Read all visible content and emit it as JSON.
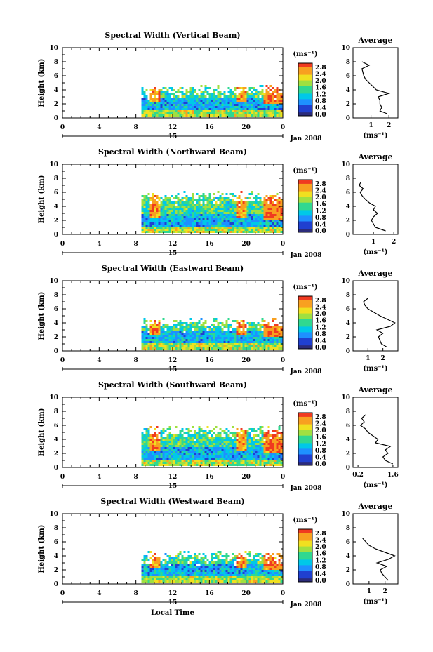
{
  "chart_data": [
    {
      "type": "heatmap",
      "title": "Spectral Width (Vertical Beam)",
      "ylabel": "Height (km)",
      "xticks": [
        "0",
        "4",
        "8",
        "12",
        "16",
        "20",
        "0"
      ],
      "xlim": [
        0,
        24
      ],
      "yticks": [
        "0",
        "2",
        "4",
        "6",
        "8",
        "10"
      ],
      "ylim": [
        0,
        10
      ],
      "date_label": "Jan 2008",
      "day_label": "15",
      "colorbar": {
        "unit": "(ms⁻¹)",
        "ticks": [
          "2.8",
          "2.4",
          "2.0",
          "1.6",
          "1.2",
          "0.8",
          "0.4",
          "0.0"
        ]
      },
      "average": {
        "title": "Average",
        "xlabel": "(ms⁻¹)",
        "xticks": [
          "1",
          "2"
        ],
        "xlim": [
          0,
          2.5
        ],
        "height": [
          0.6,
          1.0,
          1.5,
          2.0,
          2.5,
          3.0,
          3.5,
          4.0,
          4.5,
          5.0,
          5.5,
          6.0,
          6.5,
          7.0,
          7.5,
          8.0
        ],
        "values": [
          1.9,
          1.5,
          1.6,
          1.5,
          1.5,
          1.4,
          2.0,
          1.3,
          1.1,
          0.9,
          0.7,
          0.6,
          0.55,
          0.5,
          0.9,
          0.5
        ]
      }
    },
    {
      "type": "heatmap",
      "title": "Spectral Width (Northward Beam)",
      "ylabel": "Height (km)",
      "xticks": [
        "0",
        "4",
        "8",
        "12",
        "16",
        "20",
        "0"
      ],
      "xlim": [
        0,
        24
      ],
      "yticks": [
        "0",
        "2",
        "4",
        "6",
        "8",
        "10"
      ],
      "ylim": [
        0,
        10
      ],
      "date_label": "Jan 2008",
      "day_label": "15",
      "colorbar": {
        "unit": "(ms⁻¹)",
        "ticks": [
          "2.8",
          "2.4",
          "2.0",
          "1.6",
          "1.2",
          "0.8",
          "0.4",
          "0.0"
        ]
      },
      "average": {
        "title": "Average",
        "xlabel": "(ms⁻¹)",
        "xticks": [
          "1",
          "2"
        ],
        "xlim": [
          0,
          2.2
        ],
        "height": [
          0.5,
          1.0,
          1.5,
          2.0,
          2.5,
          3.0,
          3.5,
          4.0,
          4.5,
          5.0,
          5.5,
          6.0,
          6.5,
          7.0,
          7.5
        ],
        "values": [
          1.6,
          1.1,
          1.0,
          0.9,
          1.0,
          1.2,
          1.0,
          1.1,
          0.8,
          0.6,
          0.45,
          0.35,
          0.5,
          0.3,
          0.4
        ]
      }
    },
    {
      "type": "heatmap",
      "title": "Spectral Width (Eastward Beam)",
      "ylabel": "Height (km)",
      "xticks": [
        "0",
        "4",
        "8",
        "12",
        "16",
        "20",
        "0"
      ],
      "xlim": [
        0,
        24
      ],
      "yticks": [
        "0",
        "2",
        "4",
        "6",
        "8",
        "10"
      ],
      "ylim": [
        0,
        10
      ],
      "date_label": "Jan 2008",
      "day_label": "15",
      "colorbar": {
        "unit": "(ms⁻¹)",
        "ticks": [
          "2.8",
          "2.4",
          "2.0",
          "1.6",
          "1.2",
          "0.8",
          "0.4",
          "0.0"
        ]
      },
      "average": {
        "title": "Average",
        "xlabel": "(ms⁻¹)",
        "xticks": [
          "1",
          "2"
        ],
        "xlim": [
          0,
          3
        ],
        "height": [
          0.5,
          1.0,
          1.5,
          2.0,
          2.5,
          3.0,
          3.5,
          4.0,
          4.5,
          5.0,
          5.5,
          6.0,
          6.5,
          7.0,
          7.5
        ],
        "values": [
          2.3,
          1.9,
          1.8,
          1.7,
          2.0,
          1.6,
          2.5,
          2.8,
          2.3,
          1.8,
          1.4,
          1.0,
          0.8,
          0.7,
          1.0
        ]
      }
    },
    {
      "type": "heatmap",
      "title": "Spectral Width (Southward Beam)",
      "ylabel": "Height (km)",
      "xticks": [
        "0",
        "4",
        "8",
        "12",
        "16",
        "20",
        "0"
      ],
      "xlim": [
        0,
        24
      ],
      "yticks": [
        "0",
        "2",
        "4",
        "6",
        "8",
        "10"
      ],
      "ylim": [
        0,
        10
      ],
      "date_label": "Jan 2008",
      "day_label": "15",
      "colorbar": {
        "unit": "(ms⁻¹)",
        "ticks": [
          "2.8",
          "2.4",
          "2.0",
          "1.6",
          "1.2",
          "0.8",
          "0.4",
          "0.0"
        ]
      },
      "average": {
        "title": "Average",
        "xlabel": "(ms⁻¹)",
        "xticks": [
          "0.2",
          "1.6"
        ],
        "xlim": [
          0,
          1.8
        ],
        "height": [
          0.5,
          1.0,
          1.5,
          2.0,
          2.5,
          3.0,
          3.5,
          4.0,
          4.5,
          5.0,
          5.5,
          6.0,
          6.5,
          7.0,
          7.5
        ],
        "values": [
          1.6,
          1.3,
          1.2,
          1.4,
          1.3,
          1.5,
          0.9,
          1.0,
          0.8,
          0.6,
          0.5,
          0.3,
          0.45,
          0.35,
          0.5
        ]
      }
    },
    {
      "type": "heatmap",
      "title": "Spectral Width (Westward Beam)",
      "ylabel": "Height (km)",
      "xlabel": "Local Time",
      "xticks": [
        "0",
        "4",
        "8",
        "12",
        "16",
        "20",
        "0"
      ],
      "xlim": [
        0,
        24
      ],
      "yticks": [
        "0",
        "2",
        "4",
        "6",
        "8",
        "10"
      ],
      "ylim": [
        0,
        10
      ],
      "date_label": "Jan 2008",
      "day_label": "15",
      "colorbar": {
        "unit": "(ms⁻¹)",
        "ticks": [
          "2.8",
          "2.4",
          "2.0",
          "1.6",
          "1.2",
          "0.8",
          "0.4",
          "0.0"
        ]
      },
      "average": {
        "title": "Average",
        "xlabel": "(ms⁻¹)",
        "xticks": [
          "1",
          "2"
        ],
        "xlim": [
          0,
          2.8
        ],
        "height": [
          0.5,
          1.0,
          1.5,
          2.0,
          2.5,
          3.0,
          3.5,
          4.0,
          4.5,
          5.0,
          5.5,
          6.0,
          6.5
        ],
        "values": [
          2.2,
          2.0,
          1.8,
          1.7,
          2.1,
          1.5,
          2.2,
          2.6,
          2.0,
          1.4,
          1.0,
          0.8,
          0.6
        ]
      }
    }
  ],
  "colors": {
    "scale": [
      "#2b2b7a",
      "#2040d0",
      "#1e90ff",
      "#00c8e8",
      "#30d890",
      "#a0e040",
      "#f0e020",
      "#f8a020",
      "#f03a20"
    ]
  }
}
